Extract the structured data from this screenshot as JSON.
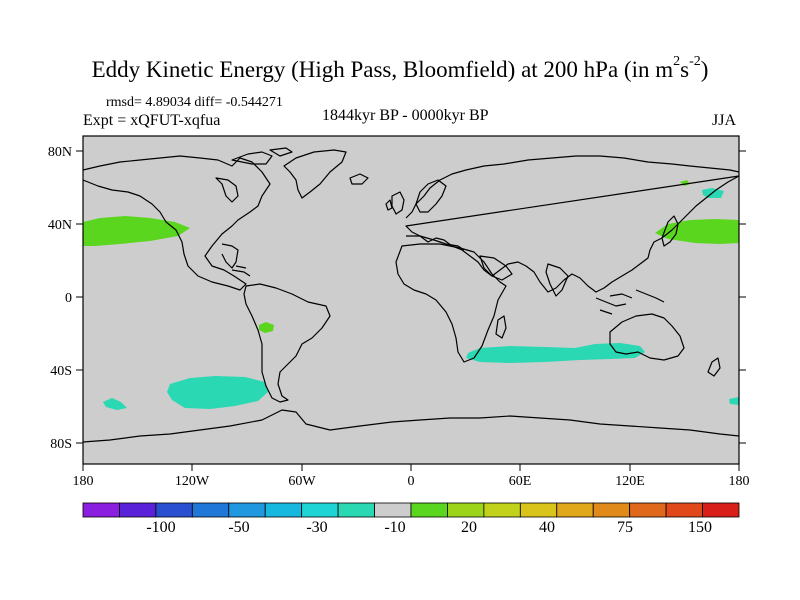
{
  "title": {
    "main": "Eddy Kinetic Energy (High Pass, Bloomfield) at 200 hPa (in m",
    "sup1": "2",
    "mid": "s",
    "sup2": "-2",
    "end": ")"
  },
  "stats": {
    "rmsd_line": "rmsd= 4.89034 diff= -0.544271",
    "expt_line": "Expt = xQFUT-xqfua",
    "period": "1844kyr BP - 0000kyr BP",
    "season": "JJA"
  },
  "axes": {
    "lat_labels": [
      "80N",
      "40N",
      "0",
      "40S",
      "80S"
    ],
    "lon_labels": [
      "180",
      "120W",
      "60W",
      "0",
      "60E",
      "120E",
      "180"
    ]
  },
  "colorbar": {
    "colors": [
      "#8a1fe0",
      "#5a22d8",
      "#2a4fd0",
      "#1f78d8",
      "#1f98e0",
      "#17b8e0",
      "#1fd4d4",
      "#2ad8b4",
      "#cdcdcd",
      "#5ad61f",
      "#9cd41a",
      "#c2d21a",
      "#d8c41a",
      "#e0a81a",
      "#e08a1a",
      "#e0681a",
      "#e0481a",
      "#d81f1a"
    ],
    "labels": [
      "-100",
      "-50",
      "-30",
      "-10",
      "20",
      "40",
      "75",
      "150"
    ]
  },
  "map": {
    "background": "#cdcdcd",
    "positive_color": "#5ad61f",
    "negative_color": "#2ad8b4",
    "coast_color": "#000000"
  }
}
